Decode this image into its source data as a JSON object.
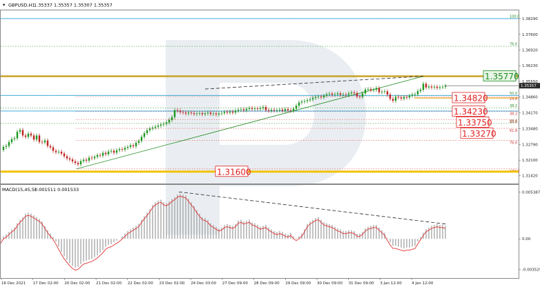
{
  "header": {
    "symbol_label": "GBPUSD,H1",
    "ohlc_text": "1.35337 1.35357 1.35307 1.35357"
  },
  "macd": {
    "label": "MACD(15,45,5)",
    "values_text": "0.001511 0.001533",
    "tick_labels": [
      "0.005387",
      "0.00",
      "-0.003529"
    ],
    "tick_values": [
      0.005387,
      0.0,
      -0.003529
    ]
  },
  "chart_data": {
    "type": "candlestick",
    "title": "",
    "price_ylim": [
      1.3108,
      1.3865
    ],
    "price_ticks": [
      1.3829,
      1.376,
      1.3692,
      1.3623,
      1.3555,
      1.3486,
      1.3417,
      1.3348,
      1.3279,
      1.321,
      1.3142
    ],
    "price_tick_labels": [
      "1.38290",
      "1.37600",
      "1.36920",
      "1.36230",
      "1.35550",
      "1.34860",
      "1.34170",
      "1.33480",
      "1.32790",
      "1.32100",
      "1.31420"
    ],
    "x_tick_labels": [
      "16 Dec 2021",
      "17 Dec 02:00",
      "20 Dec 02:00",
      "21 Dec 02:00",
      "22 Dec 02:00",
      "23 Dec 02:00",
      "24 Dec 03:00",
      "27 Dec 09:00",
      "28 Dec 09:00",
      "29 Dec 09:00",
      "30 Dec 09:00",
      "31 Dec 09:00",
      "3 Jan 12:00",
      "4 Jan 12:00"
    ],
    "current_price": "1.35357",
    "price_line_color": "#2aa3d8",
    "key_levels": [
      {
        "label": "1.35770",
        "value": 1.3577,
        "color": "#1f8a1f"
      },
      {
        "label": "1.34820",
        "value": 1.3482,
        "color": "#e02020"
      },
      {
        "label": "1.34230",
        "value": 1.3423,
        "color": "#e02020"
      },
      {
        "label": "1.33750",
        "value": 1.3375,
        "color": "#e02020"
      },
      {
        "label": "1.33270",
        "value": 1.3327,
        "color": "#e02020"
      },
      {
        "label": "1.31600",
        "value": 1.316,
        "color": "#e02020"
      }
    ],
    "fib_green": [
      {
        "label": "100.0",
        "value": 1.3829
      },
      {
        "label": "76.0",
        "value": 1.3708
      },
      {
        "label": "61.8",
        "value": 1.3577
      },
      {
        "label": "50.0",
        "value": 1.3493
      },
      {
        "label": "38.2",
        "value": 1.3438
      },
      {
        "label": "23.6",
        "value": 1.3371
      }
    ],
    "fib_red": [
      {
        "label": "23.6",
        "value": 1.3488
      },
      {
        "label": "38.2",
        "value": 1.3423
      },
      {
        "label": "50.0",
        "value": 1.3388
      },
      {
        "label": "61.8",
        "value": 1.3349
      },
      {
        "label": "76.0",
        "value": 1.3296
      },
      {
        "label": "100.0",
        "value": 1.3172
      }
    ],
    "price_path": [
      [
        0,
        1.3255
      ],
      [
        4,
        1.3268
      ],
      [
        8,
        1.3272
      ],
      [
        12,
        1.3289
      ],
      [
        16,
        1.3302
      ],
      [
        20,
        1.3306
      ],
      [
        24,
        1.3334
      ],
      [
        28,
        1.3342
      ],
      [
        32,
        1.3318
      ],
      [
        36,
        1.3312
      ],
      [
        40,
        1.3326
      ],
      [
        44,
        1.3318
      ],
      [
        48,
        1.33
      ],
      [
        52,
        1.3318
      ],
      [
        56,
        1.329
      ],
      [
        60,
        1.3288
      ],
      [
        64,
        1.3296
      ],
      [
        68,
        1.3272
      ],
      [
        72,
        1.3266
      ],
      [
        76,
        1.3251
      ],
      [
        80,
        1.3245
      ],
      [
        84,
        1.3247
      ],
      [
        88,
        1.3239
      ],
      [
        92,
        1.3227
      ],
      [
        96,
        1.3218
      ],
      [
        100,
        1.3213
      ],
      [
        104,
        1.3205
      ],
      [
        108,
        1.3198
      ],
      [
        112,
        1.3192
      ],
      [
        116,
        1.3206
      ],
      [
        120,
        1.3212
      ],
      [
        124,
        1.3208
      ],
      [
        128,
        1.3221
      ],
      [
        132,
        1.3219
      ],
      [
        136,
        1.3225
      ],
      [
        140,
        1.3232
      ],
      [
        144,
        1.323
      ],
      [
        148,
        1.3242
      ],
      [
        152,
        1.3236
      ],
      [
        156,
        1.3248
      ],
      [
        160,
        1.3251
      ],
      [
        164,
        1.3243
      ],
      [
        168,
        1.3253
      ],
      [
        172,
        1.3258
      ],
      [
        176,
        1.3256
      ],
      [
        180,
        1.3264
      ],
      [
        184,
        1.3268
      ],
      [
        188,
        1.3275
      ],
      [
        192,
        1.3271
      ],
      [
        196,
        1.3286
      ],
      [
        200,
        1.3294
      ],
      [
        204,
        1.3312
      ],
      [
        208,
        1.3328
      ],
      [
        212,
        1.3341
      ],
      [
        216,
        1.3348
      ],
      [
        220,
        1.3352
      ],
      [
        224,
        1.3356
      ],
      [
        228,
        1.3361
      ],
      [
        232,
        1.3366
      ],
      [
        236,
        1.3369
      ],
      [
        240,
        1.3375
      ],
      [
        244,
        1.3386
      ],
      [
        248,
        1.3398
      ],
      [
        252,
        1.3428
      ],
      [
        256,
        1.3426
      ],
      [
        260,
        1.342
      ],
      [
        264,
        1.3418
      ],
      [
        268,
        1.3414
      ],
      [
        272,
        1.3418
      ],
      [
        276,
        1.3416
      ],
      [
        280,
        1.3412
      ],
      [
        284,
        1.3414
      ],
      [
        288,
        1.3416
      ],
      [
        292,
        1.3411
      ],
      [
        296,
        1.3415
      ],
      [
        300,
        1.3418
      ],
      [
        304,
        1.3412
      ],
      [
        308,
        1.3414
      ],
      [
        312,
        1.341
      ],
      [
        316,
        1.3414
      ],
      [
        320,
        1.3416
      ],
      [
        324,
        1.3421
      ],
      [
        328,
        1.3418
      ],
      [
        332,
        1.3422
      ],
      [
        336,
        1.3418
      ],
      [
        340,
        1.3426
      ],
      [
        344,
        1.343
      ],
      [
        348,
        1.3432
      ],
      [
        352,
        1.3428
      ],
      [
        356,
        1.3434
      ],
      [
        360,
        1.3438
      ],
      [
        364,
        1.3434
      ],
      [
        368,
        1.3436
      ],
      [
        372,
        1.3434
      ],
      [
        376,
        1.3438
      ],
      [
        380,
        1.3442
      ],
      [
        384,
        1.3429
      ],
      [
        388,
        1.3426
      ],
      [
        392,
        1.343
      ],
      [
        396,
        1.3427
      ],
      [
        400,
        1.3428
      ],
      [
        404,
        1.3431
      ],
      [
        408,
        1.3426
      ],
      [
        412,
        1.3433
      ],
      [
        416,
        1.3428
      ],
      [
        420,
        1.3426
      ],
      [
        424,
        1.3435
      ],
      [
        428,
        1.3448
      ],
      [
        432,
        1.3462
      ],
      [
        436,
        1.3466
      ],
      [
        440,
        1.3468
      ],
      [
        444,
        1.3472
      ],
      [
        448,
        1.3476
      ],
      [
        452,
        1.3482
      ],
      [
        456,
        1.3486
      ],
      [
        460,
        1.3488
      ],
      [
        464,
        1.3485
      ],
      [
        468,
        1.3492
      ],
      [
        472,
        1.3498
      ],
      [
        476,
        1.3501
      ],
      [
        480,
        1.3496
      ],
      [
        484,
        1.3498
      ],
      [
        488,
        1.3502
      ],
      [
        492,
        1.3496
      ],
      [
        496,
        1.3497
      ],
      [
        500,
        1.3496
      ],
      [
        504,
        1.3502
      ],
      [
        508,
        1.3506
      ],
      [
        512,
        1.3503
      ],
      [
        516,
        1.3488
      ],
      [
        520,
        1.3487
      ],
      [
        524,
        1.3502
      ],
      [
        528,
        1.3519
      ],
      [
        532,
        1.3521
      ],
      [
        536,
        1.3516
      ],
      [
        540,
        1.3518
      ],
      [
        544,
        1.3525
      ],
      [
        548,
        1.3507
      ],
      [
        552,
        1.3509
      ],
      [
        556,
        1.3511
      ],
      [
        560,
        1.3497
      ],
      [
        564,
        1.3478
      ],
      [
        568,
        1.347
      ],
      [
        572,
        1.3487
      ],
      [
        576,
        1.3484
      ],
      [
        580,
        1.3479
      ],
      [
        584,
        1.3486
      ],
      [
        588,
        1.3484
      ],
      [
        592,
        1.3492
      ],
      [
        596,
        1.3497
      ],
      [
        600,
        1.3498
      ],
      [
        604,
        1.3512
      ],
      [
        608,
        1.3518
      ],
      [
        612,
        1.3544
      ],
      [
        616,
        1.3528
      ],
      [
        620,
        1.3532
      ],
      [
        624,
        1.3528
      ],
      [
        628,
        1.3531
      ],
      [
        632,
        1.3526
      ],
      [
        636,
        1.3529
      ],
      [
        640,
        1.3531
      ],
      [
        644,
        1.3535
      ]
    ],
    "support_line": [
      [
        110,
        1.3172
      ],
      [
        612,
        1.3577
      ]
    ],
    "resistance_line": [
      [
        296,
        1.3521
      ],
      [
        612,
        1.3577
      ]
    ],
    "macd_path": [
      [
        0,
        -0.0002
      ],
      [
        4,
        0.0003
      ],
      [
        8,
        0.0005
      ],
      [
        12,
        0.0008
      ],
      [
        16,
        0.0011
      ],
      [
        20,
        0.0013
      ],
      [
        24,
        0.0018
      ],
      [
        28,
        0.0022
      ],
      [
        32,
        0.0025
      ],
      [
        36,
        0.0029
      ],
      [
        40,
        0.003
      ],
      [
        44,
        0.0029
      ],
      [
        48,
        0.0027
      ],
      [
        52,
        0.0025
      ],
      [
        56,
        0.0023
      ],
      [
        60,
        0.002
      ],
      [
        64,
        0.0015
      ],
      [
        68,
        0.001
      ],
      [
        72,
        0.0006
      ],
      [
        76,
        0.0002
      ],
      [
        80,
        -0.0003
      ],
      [
        84,
        -0.0009
      ],
      [
        88,
        -0.0015
      ],
      [
        92,
        -0.002
      ],
      [
        96,
        -0.0024
      ],
      [
        100,
        -0.0028
      ],
      [
        104,
        -0.0031
      ],
      [
        108,
        -0.0033
      ],
      [
        112,
        -0.0032
      ],
      [
        116,
        -0.0029
      ],
      [
        120,
        -0.0026
      ],
      [
        124,
        -0.0025
      ],
      [
        128,
        -0.0024
      ],
      [
        132,
        -0.0023
      ],
      [
        136,
        -0.0021
      ],
      [
        140,
        -0.0019
      ],
      [
        144,
        -0.0016
      ],
      [
        148,
        -0.0013
      ],
      [
        152,
        -0.0009
      ],
      [
        156,
        -0.0007
      ],
      [
        160,
        -0.0006
      ],
      [
        164,
        -0.0004
      ],
      [
        168,
        -0.0002
      ],
      [
        172,
        0.0
      ],
      [
        176,
        0.0003
      ],
      [
        180,
        0.0006
      ],
      [
        184,
        0.0009
      ],
      [
        188,
        0.0011
      ],
      [
        192,
        0.0013
      ],
      [
        196,
        0.0015
      ],
      [
        200,
        0.0017
      ],
      [
        204,
        0.0022
      ],
      [
        208,
        0.0026
      ],
      [
        212,
        0.003
      ],
      [
        216,
        0.0034
      ],
      [
        220,
        0.0039
      ],
      [
        224,
        0.0042
      ],
      [
        228,
        0.0044
      ],
      [
        232,
        0.0045
      ],
      [
        236,
        0.0042
      ],
      [
        240,
        0.0041
      ],
      [
        244,
        0.0043
      ],
      [
        248,
        0.0046
      ],
      [
        252,
        0.0048
      ],
      [
        256,
        0.0051
      ],
      [
        260,
        0.0052
      ],
      [
        264,
        0.0051
      ],
      [
        268,
        0.005
      ],
      [
        272,
        0.0046
      ],
      [
        276,
        0.0042
      ],
      [
        280,
        0.0038
      ],
      [
        284,
        0.0033
      ],
      [
        288,
        0.0029
      ],
      [
        292,
        0.0025
      ],
      [
        296,
        0.0024
      ],
      [
        300,
        0.0022
      ],
      [
        304,
        0.0018
      ],
      [
        308,
        0.0016
      ],
      [
        312,
        0.0014
      ],
      [
        316,
        0.0012
      ],
      [
        320,
        0.0013
      ],
      [
        324,
        0.0016
      ],
      [
        328,
        0.0017
      ],
      [
        332,
        0.0016
      ],
      [
        336,
        0.0015
      ],
      [
        340,
        0.0017
      ],
      [
        344,
        0.0021
      ],
      [
        348,
        0.0022
      ],
      [
        352,
        0.002
      ],
      [
        356,
        0.0021
      ],
      [
        360,
        0.0022
      ],
      [
        364,
        0.0019
      ],
      [
        368,
        0.0018
      ],
      [
        372,
        0.0016
      ],
      [
        376,
        0.0014
      ],
      [
        380,
        0.0015
      ],
      [
        384,
        0.0016
      ],
      [
        388,
        0.0013
      ],
      [
        392,
        0.0011
      ],
      [
        396,
        0.0009
      ],
      [
        400,
        0.0008
      ],
      [
        404,
        0.0009
      ],
      [
        408,
        0.0008
      ],
      [
        412,
        0.0006
      ],
      [
        416,
        0.0005
      ],
      [
        420,
        0.0007
      ],
      [
        424,
        0.0003
      ],
      [
        428,
        0.0001
      ],
      [
        432,
        0.0003
      ],
      [
        436,
        0.0006
      ],
      [
        440,
        0.0011
      ],
      [
        444,
        0.0017
      ],
      [
        448,
        0.002
      ],
      [
        452,
        0.0022
      ],
      [
        456,
        0.0024
      ],
      [
        460,
        0.0025
      ],
      [
        464,
        0.0022
      ],
      [
        468,
        0.0019
      ],
      [
        472,
        0.0018
      ],
      [
        476,
        0.0017
      ],
      [
        480,
        0.0016
      ],
      [
        484,
        0.0014
      ],
      [
        488,
        0.0012
      ],
      [
        492,
        0.0011
      ],
      [
        496,
        0.0009
      ],
      [
        500,
        0.0009
      ],
      [
        504,
        0.001
      ],
      [
        508,
        0.001
      ],
      [
        512,
        0.0009
      ],
      [
        516,
        0.0006
      ],
      [
        520,
        0.0006
      ],
      [
        524,
        0.0008
      ],
      [
        528,
        0.0012
      ],
      [
        532,
        0.0014
      ],
      [
        536,
        0.0015
      ],
      [
        540,
        0.0016
      ],
      [
        544,
        0.0016
      ],
      [
        548,
        0.0013
      ],
      [
        552,
        0.001
      ],
      [
        556,
        0.0007
      ],
      [
        560,
        0.0001
      ],
      [
        564,
        -0.0004
      ],
      [
        568,
        -0.0008
      ],
      [
        572,
        -0.0008
      ],
      [
        576,
        -0.0009
      ],
      [
        580,
        -0.001
      ],
      [
        584,
        -0.0011
      ],
      [
        588,
        -0.001
      ],
      [
        592,
        -0.001
      ],
      [
        596,
        -0.0009
      ],
      [
        600,
        -0.0008
      ],
      [
        604,
        -0.0003
      ],
      [
        608,
        0.0002
      ],
      [
        612,
        0.0007
      ],
      [
        616,
        0.0011
      ],
      [
        620,
        0.0013
      ],
      [
        624,
        0.0015
      ],
      [
        628,
        0.0016
      ],
      [
        632,
        0.0017
      ],
      [
        636,
        0.0016
      ],
      [
        640,
        0.0016
      ],
      [
        644,
        0.0015
      ]
    ],
    "macd_trend_line": [
      [
        258,
        0.0054
      ],
      [
        645,
        0.0017
      ]
    ]
  }
}
